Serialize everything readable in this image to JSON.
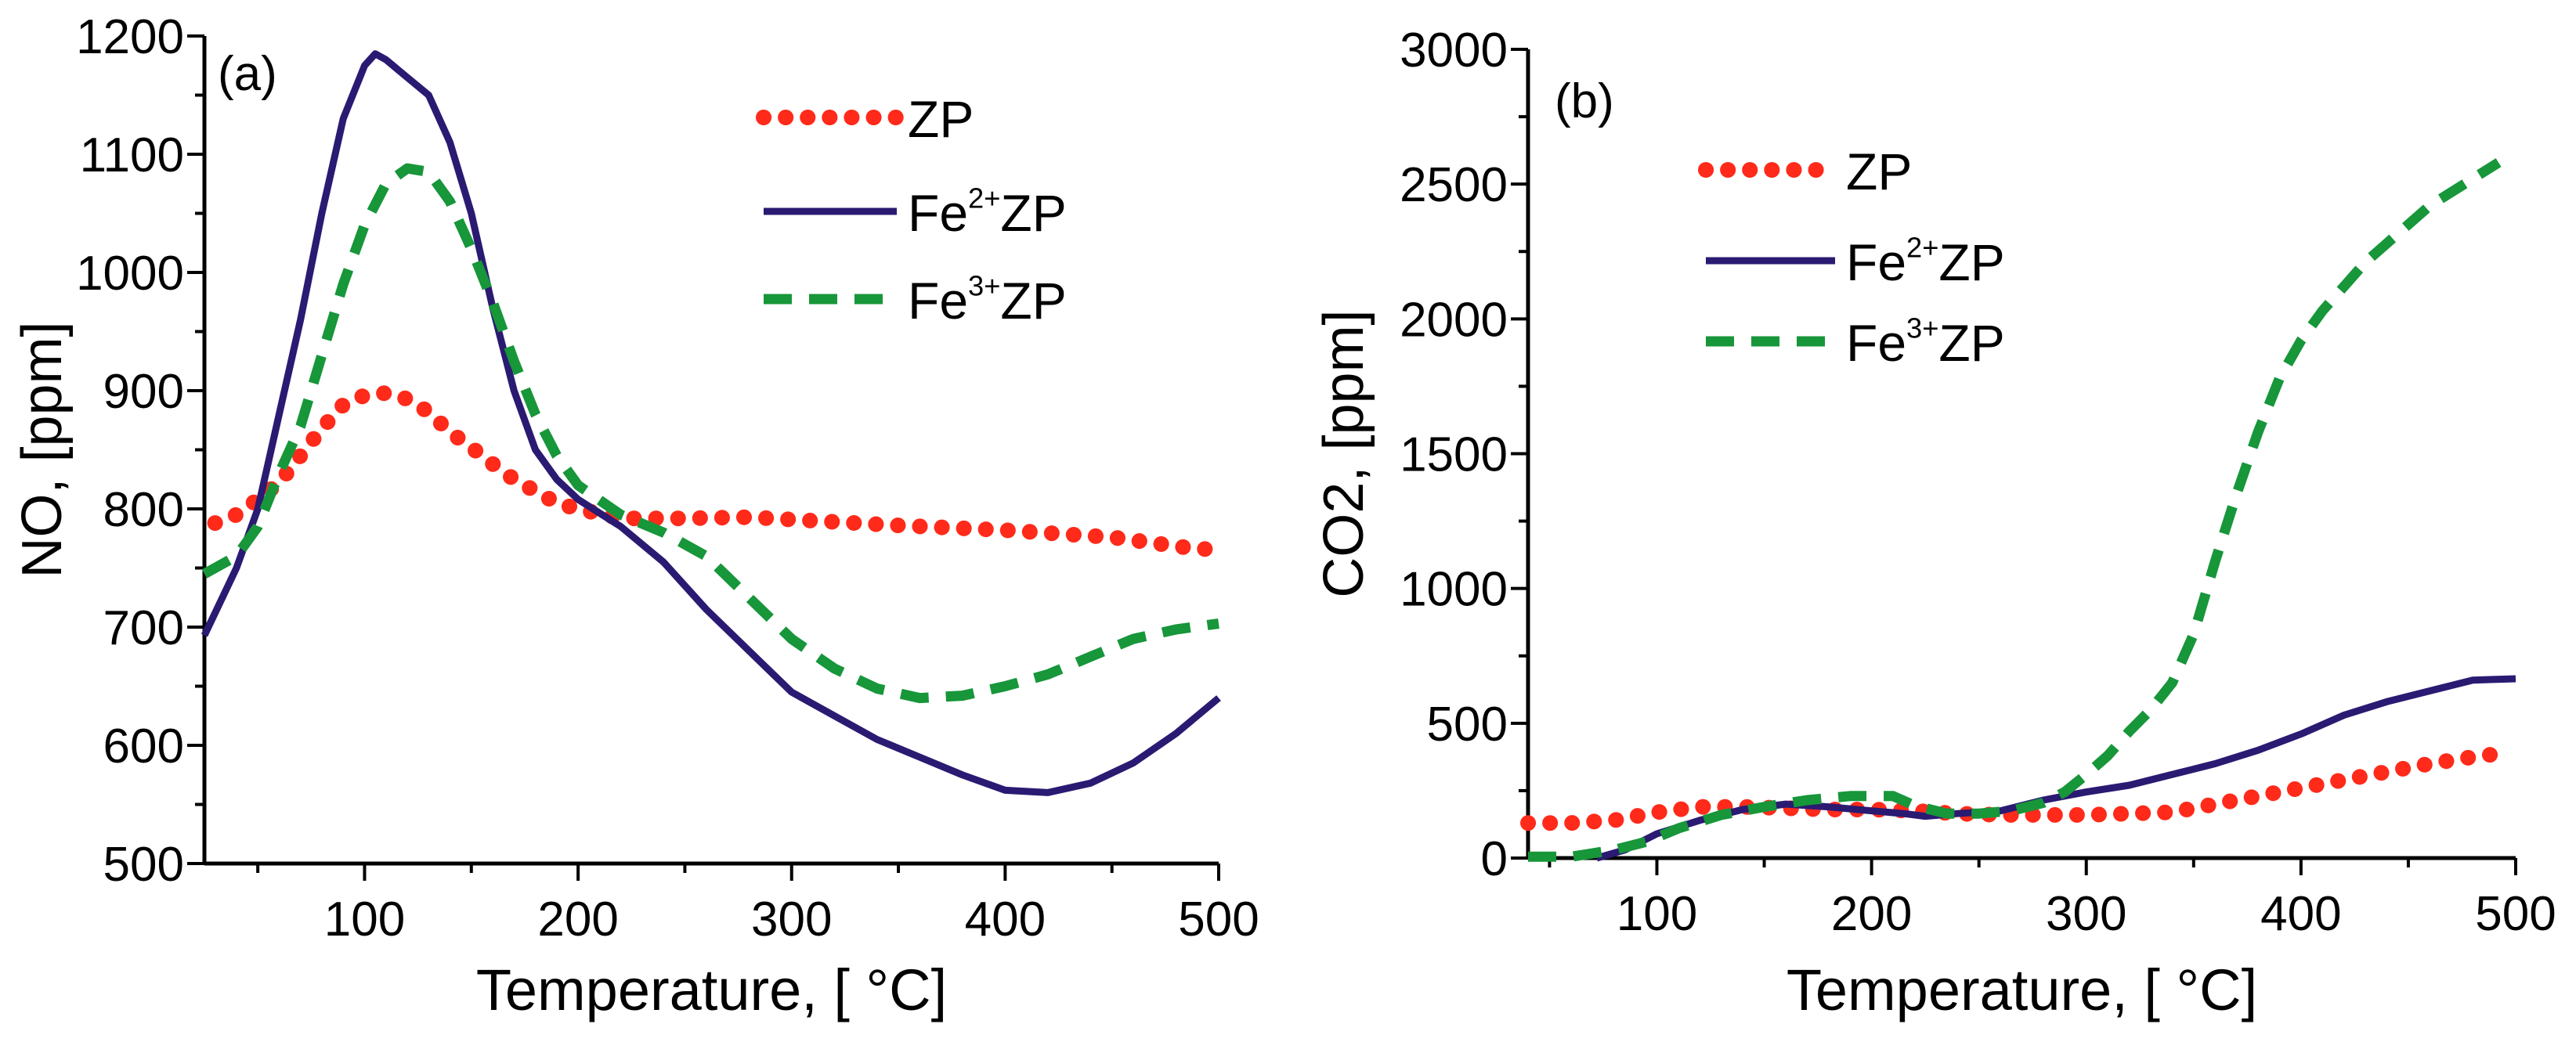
{
  "colors": {
    "ZP": "#ff2a1a",
    "Fe2": "#2b1a72",
    "Fe3": "#17963a",
    "axis": "#000000"
  },
  "chart_data": [
    {
      "type": "line",
      "panel_label": "(a)",
      "xlabel": "Temperature, [ °C]",
      "ylabel": "NO, [ppm]",
      "xlim": [
        25,
        500
      ],
      "ylim": [
        500,
        1200
      ],
      "xticks": [
        100,
        200,
        300,
        400,
        500
      ],
      "yticks": [
        500,
        600,
        700,
        800,
        900,
        1000,
        1100,
        1200
      ],
      "xminor": 50,
      "yminor": 50,
      "legend": "top-right",
      "series": [
        {
          "name": "ZP",
          "style": "dotted",
          "color": "#ff2a1a",
          "x": [
            30,
            40,
            50,
            60,
            70,
            80,
            90,
            100,
            110,
            120,
            130,
            140,
            150,
            160,
            170,
            180,
            190,
            200,
            220,
            250,
            280,
            300,
            350,
            400,
            450,
            490,
            500
          ],
          "y": [
            788,
            795,
            808,
            822,
            845,
            868,
            888,
            896,
            898,
            893,
            882,
            865,
            852,
            838,
            825,
            815,
            805,
            800,
            792,
            792,
            793,
            791,
            786,
            782,
            776,
            766,
            766
          ]
        },
        {
          "name": "Fe2+ZP",
          "style": "solid",
          "color": "#2b1a72",
          "x": [
            25,
            40,
            50,
            60,
            70,
            80,
            90,
            100,
            105,
            110,
            120,
            130,
            140,
            150,
            160,
            170,
            180,
            190,
            200,
            220,
            240,
            260,
            280,
            300,
            320,
            340,
            360,
            380,
            400,
            420,
            440,
            460,
            480,
            500
          ],
          "y": [
            693,
            750,
            800,
            880,
            960,
            1050,
            1130,
            1175,
            1185,
            1180,
            1165,
            1150,
            1110,
            1050,
            970,
            900,
            850,
            825,
            808,
            785,
            755,
            715,
            680,
            645,
            625,
            605,
            590,
            575,
            562,
            560,
            568,
            585,
            610,
            640
          ]
        },
        {
          "name": "Fe3+ZP",
          "style": "dashed",
          "color": "#17963a",
          "x": [
            25,
            40,
            50,
            60,
            70,
            80,
            90,
            100,
            110,
            120,
            130,
            140,
            150,
            160,
            170,
            180,
            190,
            200,
            220,
            240,
            260,
            280,
            300,
            320,
            340,
            360,
            380,
            400,
            420,
            440,
            460,
            480,
            500
          ],
          "y": [
            745,
            760,
            785,
            830,
            870,
            930,
            990,
            1040,
            1075,
            1088,
            1085,
            1060,
            1020,
            975,
            925,
            880,
            845,
            820,
            795,
            780,
            760,
            725,
            690,
            665,
            648,
            640,
            642,
            650,
            660,
            675,
            690,
            698,
            703
          ]
        }
      ]
    },
    {
      "type": "line",
      "panel_label": "(b)",
      "xlabel": "Temperature, [ °C]",
      "ylabel": "CO2, [ppm]",
      "xlim": [
        40,
        500
      ],
      "ylim": [
        0,
        3000
      ],
      "xticks": [
        100,
        200,
        300,
        400,
        500
      ],
      "yticks": [
        0,
        500,
        1000,
        1500,
        2000,
        2500,
        3000
      ],
      "xminor": 50,
      "yminor": 250,
      "legend": "top-left",
      "series": [
        {
          "name": "ZP",
          "style": "dotted",
          "color": "#ff2a1a",
          "x": [
            40,
            60,
            80,
            100,
            120,
            140,
            160,
            180,
            200,
            220,
            240,
            260,
            280,
            300,
            320,
            340,
            360,
            380,
            400,
            420,
            440,
            460,
            480,
            495
          ],
          "y": [
            130,
            130,
            140,
            170,
            190,
            190,
            185,
            180,
            180,
            175,
            165,
            160,
            160,
            160,
            165,
            170,
            200,
            230,
            260,
            290,
            320,
            350,
            375,
            390
          ]
        },
        {
          "name": "Fe2+ZP",
          "style": "solid",
          "color": "#2b1a72",
          "x": [
            72,
            85,
            100,
            120,
            140,
            160,
            180,
            200,
            215,
            225,
            240,
            260,
            280,
            300,
            320,
            340,
            360,
            380,
            400,
            420,
            440,
            460,
            480,
            500
          ],
          "y": [
            0,
            30,
            90,
            140,
            180,
            200,
            190,
            175,
            165,
            155,
            165,
            175,
            215,
            245,
            270,
            310,
            350,
            400,
            460,
            530,
            580,
            620,
            660,
            665
          ]
        },
        {
          "name": "Fe3+ZP",
          "style": "dashed",
          "color": "#17963a",
          "x": [
            40,
            60,
            80,
            95,
            110,
            130,
            150,
            170,
            190,
            210,
            220,
            235,
            250,
            265,
            280,
            290,
            300,
            310,
            320,
            330,
            340,
            350,
            360,
            370,
            380,
            390,
            400,
            410,
            420,
            430,
            440,
            460,
            480,
            492
          ],
          "y": [
            5,
            5,
            30,
            60,
            110,
            160,
            190,
            215,
            230,
            230,
            195,
            165,
            165,
            175,
            205,
            245,
            310,
            380,
            470,
            550,
            650,
            830,
            1100,
            1350,
            1580,
            1780,
            1920,
            2030,
            2120,
            2210,
            2280,
            2420,
            2520,
            2580
          ]
        }
      ]
    }
  ]
}
